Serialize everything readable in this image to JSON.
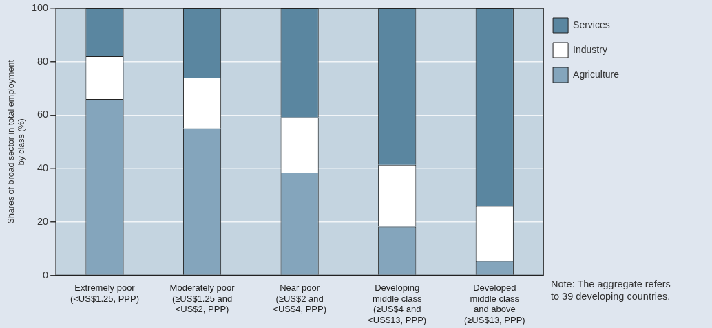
{
  "chart_data": {
    "type": "bar",
    "stacked": true,
    "categories": [
      "Extremely poor\n(<US$1.25, PPP)",
      "Moderately poor\n(≥US$1.25 and\n<US$2, PPP)",
      "Near poor\n(≥US$2 and\n<US$4, PPP)",
      "Developing\nmiddle class\n(≥US$4 and\n<US$13, PPP)",
      "Developed\nmiddle class\nand above\n(≥US$13, PPP)"
    ],
    "series": [
      {
        "name": "Agriculture",
        "color": "#84a5bc",
        "values": [
          66,
          55,
          38.5,
          18.3,
          5.4
        ]
      },
      {
        "name": "Industry",
        "color": "#ffffff",
        "values": [
          16,
          19,
          20.7,
          23.1,
          20.6
        ]
      },
      {
        "name": "Services",
        "color": "#5a86a0",
        "values": [
          18,
          26,
          40.8,
          58.6,
          74
        ]
      }
    ],
    "ylabel": "Shares of broad sector in total employment\nby class (%)",
    "ylim": [
      0,
      100
    ],
    "yticks": [
      0,
      20,
      40,
      60,
      80,
      100
    ],
    "grid": "y",
    "legend": "top right",
    "annotations": [
      "Note: The aggregate refers\nto 39 developing countries."
    ]
  }
}
